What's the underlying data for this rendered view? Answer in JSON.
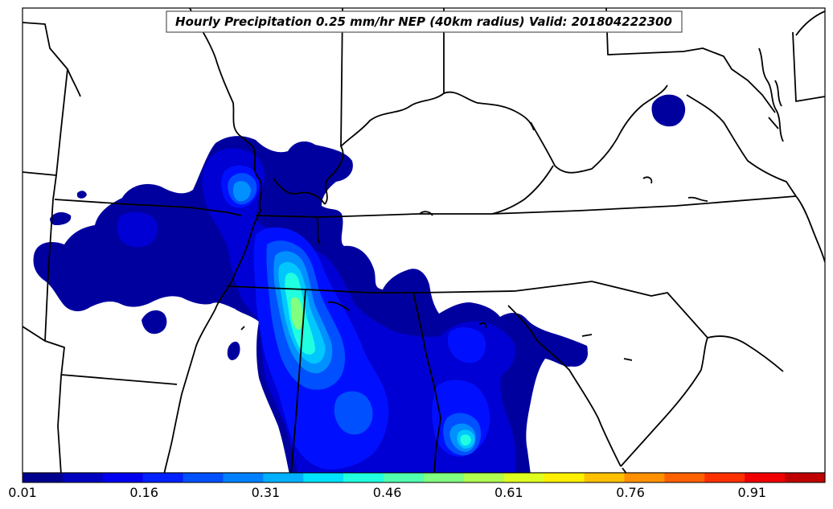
{
  "map": {
    "title": "Hourly Precipitation 0.25 mm/hr NEP (40km radius) Valid: 201804222300"
  },
  "colorbar": {
    "min": 0.01,
    "max": 1.0,
    "ticks": [
      "0.01",
      "0.16",
      "0.31",
      "0.46",
      "0.61",
      "0.76",
      "0.91"
    ],
    "tick_values": [
      0.01,
      0.16,
      0.31,
      0.46,
      0.61,
      0.76,
      0.91
    ],
    "colors": [
      "#00008f",
      "#0000c0",
      "#0000f0",
      "#0020ff",
      "#0050ff",
      "#0080ff",
      "#00b0ff",
      "#00e0ff",
      "#20ffdf",
      "#50ffaf",
      "#80ff80",
      "#b0ff50",
      "#dfff20",
      "#ffef00",
      "#ffc000",
      "#ff9000",
      "#ff6000",
      "#ff3000",
      "#f00000",
      "#c00000"
    ]
  },
  "legend_levels": {
    "l1": "#00009f",
    "l2": "#0000d4",
    "l3": "#0010ff",
    "l4": "#0050ff",
    "l5": "#0090ff",
    "l6": "#00c8ff",
    "l7": "#20ffdf",
    "l8": "#80ff80"
  }
}
